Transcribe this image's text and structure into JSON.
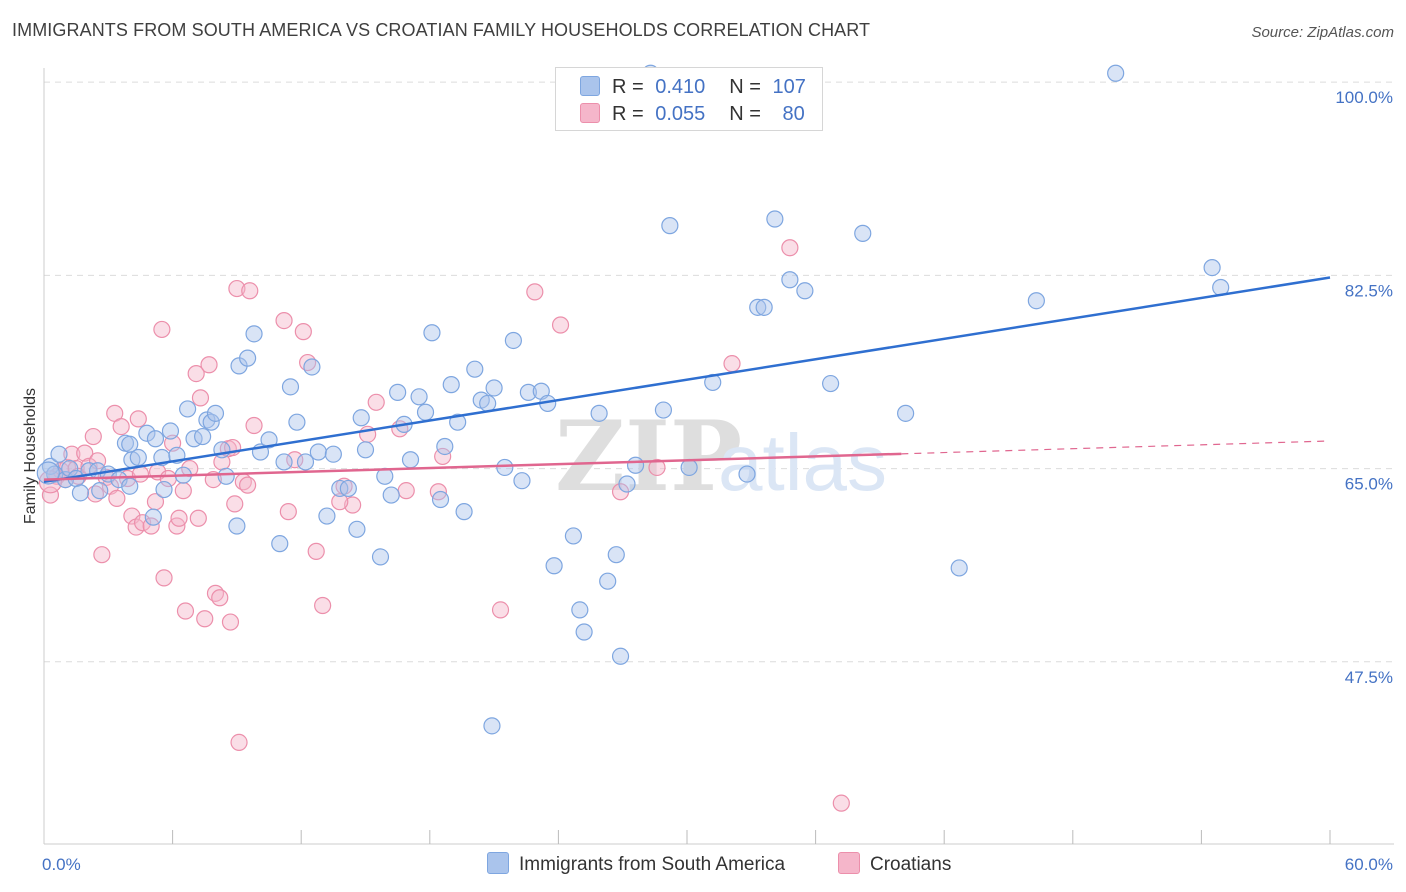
{
  "header": {
    "title": "IMMIGRANTS FROM SOUTH AMERICA VS CROATIAN FAMILY HOUSEHOLDS CORRELATION CHART",
    "source": "Source: ZipAtlas.com"
  },
  "legend": {
    "rows": [
      {
        "r_label": "R =",
        "r_value": "0.410",
        "n_label": "N =",
        "n_value": "107"
      },
      {
        "r_label": "R =",
        "r_value": "0.055",
        "n_label": "N =",
        "n_value": "80"
      }
    ]
  },
  "bottom_legend": [
    "Immigrants from South America",
    "Croatians"
  ],
  "watermark": {
    "zip": "ZIP",
    "atlas": "atlas"
  },
  "colors": {
    "blue_fill": "#aac4ec",
    "blue_stroke": "#7ea6e0",
    "blue_line": "#2f6fd0",
    "pink_fill": "#f5b6ca",
    "pink_stroke": "#ec8fab",
    "pink_line": "#e0668f",
    "tick_text": "#4472c4",
    "grid": "#dcdcdc"
  },
  "chart_data": {
    "type": "scatter",
    "title": "IMMIGRANTS FROM SOUTH AMERICA VS CROATIAN FAMILY HOUSEHOLDS CORRELATION CHART",
    "xlabel": "",
    "ylabel": "Family Households",
    "xlim": [
      0,
      60
    ],
    "ylim": [
      31,
      102
    ],
    "x_tick_labels": [
      {
        "value": 0,
        "label": "0.0%"
      },
      {
        "value": 60,
        "label": "60.0%"
      }
    ],
    "y_ticks": [
      {
        "value": 47.5,
        "label": "47.5%"
      },
      {
        "value": 65.0,
        "label": "65.0%"
      },
      {
        "value": 82.5,
        "label": "82.5%"
      },
      {
        "value": 100.0,
        "label": "100.0%"
      }
    ],
    "grid_y": [
      47.5,
      65.0,
      82.5,
      100.0
    ],
    "x_minor_ticks": [
      6,
      12,
      18,
      24,
      30,
      36,
      42,
      48,
      54,
      60
    ],
    "series": [
      {
        "name": "Immigrants from South America",
        "color": "#aac4ec",
        "r": 0.41,
        "n": 107,
        "trend": {
          "x": [
            0,
            60
          ],
          "y": [
            63.8,
            82.3
          ],
          "dashed_from": null
        },
        "points": [
          [
            0.3,
            65.2
          ],
          [
            0.5,
            64.5
          ],
          [
            0.7,
            66.3
          ],
          [
            1.0,
            64.0
          ],
          [
            1.2,
            65.0
          ],
          [
            1.5,
            64.1
          ],
          [
            1.7,
            62.8
          ],
          [
            2.1,
            64.8
          ],
          [
            2.5,
            64.8
          ],
          [
            2.6,
            63.0
          ],
          [
            3.0,
            64.5
          ],
          [
            3.5,
            64.0
          ],
          [
            3.8,
            67.3
          ],
          [
            4.0,
            63.4
          ],
          [
            4.0,
            67.2
          ],
          [
            4.1,
            65.8
          ],
          [
            4.4,
            66.0
          ],
          [
            4.8,
            68.2
          ],
          [
            5.1,
            60.6
          ],
          [
            5.2,
            67.7
          ],
          [
            5.5,
            66.0
          ],
          [
            5.6,
            63.1
          ],
          [
            5.9,
            68.4
          ],
          [
            6.2,
            66.2
          ],
          [
            6.5,
            64.4
          ],
          [
            6.7,
            70.4
          ],
          [
            7.0,
            67.7
          ],
          [
            7.4,
            67.9
          ],
          [
            7.6,
            69.4
          ],
          [
            7.8,
            69.2
          ],
          [
            8.0,
            70.0
          ],
          [
            8.3,
            66.7
          ],
          [
            8.5,
            64.3
          ],
          [
            9.0,
            59.8
          ],
          [
            9.1,
            74.3
          ],
          [
            9.5,
            75.0
          ],
          [
            9.8,
            77.2
          ],
          [
            10.1,
            66.5
          ],
          [
            10.5,
            67.6
          ],
          [
            11.0,
            58.2
          ],
          [
            11.2,
            65.6
          ],
          [
            11.5,
            72.4
          ],
          [
            11.8,
            69.2
          ],
          [
            12.2,
            65.6
          ],
          [
            12.5,
            74.2
          ],
          [
            12.8,
            66.5
          ],
          [
            13.2,
            60.7
          ],
          [
            13.5,
            66.3
          ],
          [
            13.8,
            63.2
          ],
          [
            14.2,
            63.2
          ],
          [
            14.6,
            59.5
          ],
          [
            14.8,
            69.6
          ],
          [
            15.0,
            66.7
          ],
          [
            15.7,
            57.0
          ],
          [
            15.9,
            64.3
          ],
          [
            16.2,
            62.6
          ],
          [
            16.5,
            71.9
          ],
          [
            16.8,
            69.0
          ],
          [
            17.1,
            65.8
          ],
          [
            17.5,
            71.5
          ],
          [
            17.8,
            70.1
          ],
          [
            18.1,
            77.3
          ],
          [
            18.5,
            62.2
          ],
          [
            18.7,
            67.0
          ],
          [
            19.0,
            72.6
          ],
          [
            19.3,
            69.2
          ],
          [
            19.6,
            61.1
          ],
          [
            20.1,
            74.0
          ],
          [
            20.4,
            71.2
          ],
          [
            20.7,
            70.9
          ],
          [
            21.0,
            72.3
          ],
          [
            21.5,
            65.1
          ],
          [
            21.9,
            76.6
          ],
          [
            22.3,
            63.9
          ],
          [
            22.6,
            71.9
          ],
          [
            23.2,
            72.0
          ],
          [
            23.5,
            70.9
          ],
          [
            23.8,
            56.2
          ],
          [
            24.7,
            58.9
          ],
          [
            25.0,
            52.2
          ],
          [
            25.2,
            50.2
          ],
          [
            25.9,
            70.0
          ],
          [
            26.3,
            54.8
          ],
          [
            26.7,
            57.2
          ],
          [
            26.9,
            48.0
          ],
          [
            27.2,
            63.6
          ],
          [
            27.6,
            65.3
          ],
          [
            28.3,
            100.8
          ],
          [
            28.9,
            70.3
          ],
          [
            29.2,
            87.0
          ],
          [
            20.9,
            41.7
          ],
          [
            30.1,
            65.1
          ],
          [
            31.2,
            72.8
          ],
          [
            32.8,
            64.5
          ],
          [
            33.3,
            79.6
          ],
          [
            33.6,
            79.6
          ],
          [
            34.1,
            87.6
          ],
          [
            34.8,
            82.1
          ],
          [
            35.5,
            81.1
          ],
          [
            36.7,
            72.7
          ],
          [
            38.2,
            86.3
          ],
          [
            40.2,
            70.0
          ],
          [
            42.7,
            56.0
          ],
          [
            46.3,
            80.2
          ],
          [
            50.0,
            100.8
          ],
          [
            54.5,
            83.2
          ],
          [
            54.9,
            81.4
          ]
        ]
      },
      {
        "name": "Croatians",
        "color": "#f5b6ca",
        "r": 0.055,
        "n": 80,
        "trend": {
          "x": [
            0,
            60
          ],
          "y": [
            64.0,
            67.5
          ],
          "dashed_from": 40
        },
        "points": [
          [
            0.3,
            62.6
          ],
          [
            0.6,
            64.3
          ],
          [
            0.8,
            64.8
          ],
          [
            1.0,
            64.0
          ],
          [
            1.1,
            65.1
          ],
          [
            1.3,
            66.3
          ],
          [
            1.5,
            65.0
          ],
          [
            1.6,
            64.3
          ],
          [
            1.9,
            66.4
          ],
          [
            2.1,
            65.2
          ],
          [
            2.3,
            67.9
          ],
          [
            2.4,
            62.7
          ],
          [
            2.5,
            65.7
          ],
          [
            2.7,
            57.2
          ],
          [
            2.9,
            64.2
          ],
          [
            3.1,
            63.4
          ],
          [
            3.3,
            70.0
          ],
          [
            3.4,
            62.3
          ],
          [
            3.6,
            68.8
          ],
          [
            3.9,
            64.1
          ],
          [
            4.1,
            60.7
          ],
          [
            4.3,
            59.7
          ],
          [
            4.4,
            69.5
          ],
          [
            4.5,
            64.5
          ],
          [
            4.6,
            60.1
          ],
          [
            5.0,
            59.8
          ],
          [
            5.2,
            62.0
          ],
          [
            5.3,
            64.7
          ],
          [
            5.5,
            77.6
          ],
          [
            5.6,
            55.1
          ],
          [
            5.8,
            64.1
          ],
          [
            6.0,
            67.3
          ],
          [
            6.2,
            59.8
          ],
          [
            6.3,
            60.5
          ],
          [
            6.5,
            63.0
          ],
          [
            6.6,
            52.1
          ],
          [
            6.8,
            65.0
          ],
          [
            7.1,
            73.6
          ],
          [
            7.2,
            60.5
          ],
          [
            7.3,
            71.4
          ],
          [
            7.5,
            51.4
          ],
          [
            7.7,
            74.4
          ],
          [
            7.9,
            64.0
          ],
          [
            8.0,
            53.7
          ],
          [
            8.2,
            53.3
          ],
          [
            8.3,
            65.6
          ],
          [
            8.6,
            66.8
          ],
          [
            8.7,
            51.1
          ],
          [
            8.9,
            61.8
          ],
          [
            9.0,
            81.3
          ],
          [
            9.1,
            40.2
          ],
          [
            9.3,
            63.8
          ],
          [
            9.5,
            63.5
          ],
          [
            9.6,
            81.1
          ],
          [
            9.8,
            68.9
          ],
          [
            11.2,
            78.4
          ],
          [
            11.4,
            61.1
          ],
          [
            11.7,
            65.8
          ],
          [
            12.1,
            77.4
          ],
          [
            12.3,
            74.6
          ],
          [
            12.7,
            57.5
          ],
          [
            13.0,
            52.6
          ],
          [
            14.0,
            63.4
          ],
          [
            14.4,
            61.7
          ],
          [
            15.1,
            68.1
          ],
          [
            15.5,
            71.0
          ],
          [
            16.6,
            68.6
          ],
          [
            16.9,
            63.0
          ],
          [
            18.4,
            62.9
          ],
          [
            18.6,
            66.1
          ],
          [
            21.3,
            52.2
          ],
          [
            22.9,
            81.0
          ],
          [
            24.1,
            78.0
          ],
          [
            26.9,
            62.9
          ],
          [
            28.6,
            65.1
          ],
          [
            32.1,
            74.5
          ],
          [
            34.8,
            85.0
          ],
          [
            37.2,
            34.7
          ],
          [
            13.8,
            62.0
          ],
          [
            8.8,
            66.9
          ]
        ]
      }
    ]
  }
}
